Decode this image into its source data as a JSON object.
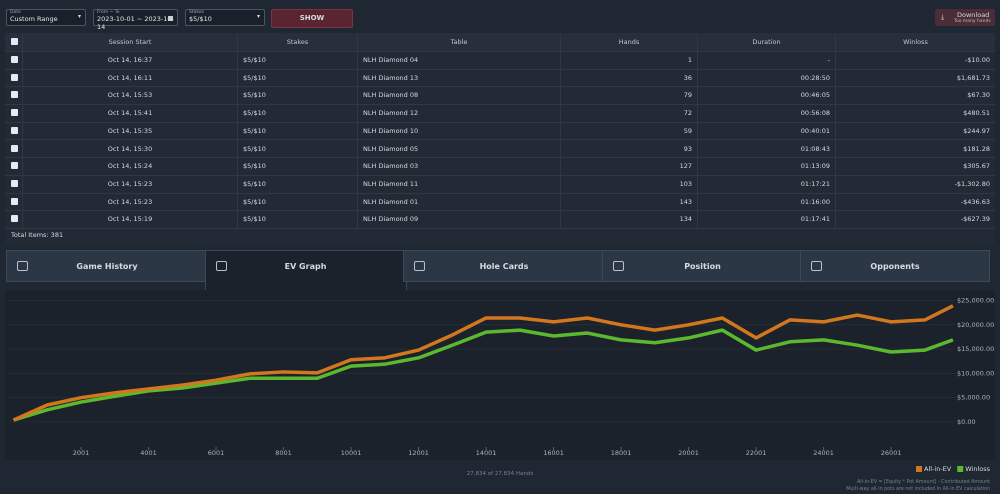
{
  "filters": {
    "date_label": "Date",
    "date_value": "Custom Range",
    "range_label": "From ~ To",
    "range_value": "2023-10-01 ~ 2023-10-14",
    "stakes_label": "Stakes",
    "stakes_value": "$5/$10",
    "show": "SHOW"
  },
  "download": {
    "label": "Download",
    "note": "Too many hands"
  },
  "table": {
    "columns": [
      "Session Start",
      "Stakes",
      "Table",
      "Hands",
      "Duration",
      "Winloss"
    ],
    "rows": [
      [
        "Oct 14, 16:37",
        "$5/$10",
        "NLH Diamond 04",
        "1",
        "-",
        "-$10.00"
      ],
      [
        "Oct 14, 16:11",
        "$5/$10",
        "NLH Diamond 13",
        "36",
        "00:28:50",
        "$1,681.73"
      ],
      [
        "Oct 14, 15:53",
        "$5/$10",
        "NLH Diamond 08",
        "79",
        "00:46:05",
        "$67.30"
      ],
      [
        "Oct 14, 15:41",
        "$5/$10",
        "NLH Diamond 12",
        "72",
        "00:56:08",
        "$480.51"
      ],
      [
        "Oct 14, 15:35",
        "$5/$10",
        "NLH Diamond 10",
        "59",
        "00:40:01",
        "$244.97"
      ],
      [
        "Oct 14, 15:30",
        "$5/$10",
        "NLH Diamond 05",
        "93",
        "01:08:43",
        "$181.28"
      ],
      [
        "Oct 14, 15:24",
        "$5/$10",
        "NLH Diamond 03",
        "127",
        "01:13:09",
        "$305.67"
      ],
      [
        "Oct 14, 15:23",
        "$5/$10",
        "NLH Diamond 11",
        "103",
        "01:17:21",
        "-$1,302.80"
      ],
      [
        "Oct 14, 15:23",
        "$5/$10",
        "NLH Diamond 01",
        "143",
        "01:16:00",
        "-$436.63"
      ],
      [
        "Oct 14, 15:19",
        "$5/$10",
        "NLH Diamond 09",
        "134",
        "01:17:41",
        "-$627.39"
      ]
    ],
    "total": "Total Items: 381"
  },
  "tabs": [
    "Game History",
    "EV Graph",
    "Hole Cards",
    "Position",
    "Opponents"
  ],
  "chart_data": {
    "type": "line",
    "x": [
      1,
      1001,
      2001,
      3001,
      4001,
      5001,
      6001,
      7001,
      8001,
      9001,
      10001,
      11001,
      12001,
      13001,
      14001,
      15001,
      16001,
      17001,
      18001,
      19001,
      20001,
      21001,
      22001,
      23001,
      24001,
      25001,
      26001,
      27001,
      27834
    ],
    "series": [
      {
        "name": "All-in-EV",
        "color": "#d2771e",
        "values": [
          400,
          3500,
          5000,
          6000,
          6800,
          7600,
          8600,
          9900,
          10300,
          10100,
          12800,
          13200,
          14800,
          17900,
          21400,
          21400,
          20600,
          21400,
          20000,
          18900,
          20000,
          21400,
          17300,
          21000,
          20600,
          22000,
          20600,
          21000,
          23900
        ]
      },
      {
        "name": "Winloss",
        "color": "#5cb82e",
        "values": [
          400,
          2500,
          4100,
          5300,
          6400,
          7000,
          8000,
          9000,
          9000,
          9000,
          11500,
          11900,
          13200,
          15800,
          18500,
          18900,
          17700,
          18300,
          16900,
          16300,
          17300,
          18900,
          14800,
          16500,
          16900,
          15800,
          14400,
          14800,
          16900
        ]
      }
    ],
    "xlim": [
      1,
      27834
    ],
    "ylim": [
      -5000,
      26500
    ],
    "xticks": [
      2001,
      4001,
      6001,
      8001,
      10001,
      12001,
      14001,
      16001,
      18001,
      20001,
      22001,
      24001,
      26001
    ],
    "yticks": [
      {
        "value": 0,
        "label": "$0.00"
      },
      {
        "value": 5000,
        "label": "$5,000.00"
      },
      {
        "value": 10000,
        "label": "$10,000.00"
      },
      {
        "value": 15000,
        "label": "$15,000.00"
      },
      {
        "value": 20000,
        "label": "$20,000.00"
      },
      {
        "value": 25000,
        "label": "$25,000.00"
      }
    ],
    "grid": true,
    "legend": "bottom-right",
    "hands_label": "27,834 of 27,834 Hands",
    "notes": [
      "All-in-EV = [Equity * Pot Amount] - Contributed Amount",
      "Multi-way all-in pots are not included in All-in EV calculation"
    ]
  }
}
